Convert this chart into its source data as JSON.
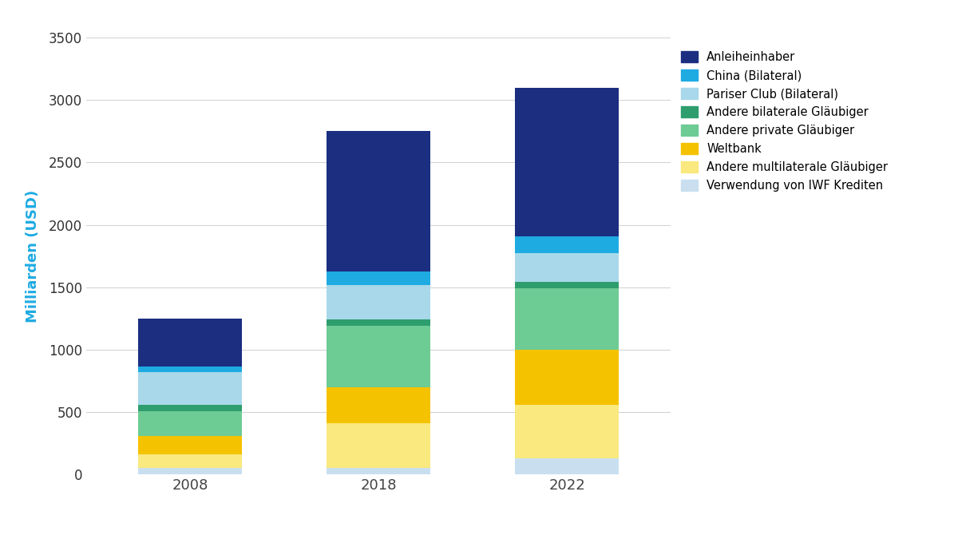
{
  "years": [
    "2008",
    "2018",
    "2022"
  ],
  "categories": [
    "Verwendung von IWF Krediten",
    "Andere multilaterale Gläubiger",
    "Weltbank",
    "Andere private Gläubiger",
    "Andere bilaterale Gläubiger",
    "Pariser Club (Bilateral)",
    "China (Bilateral)",
    "Anleiheinhaber"
  ],
  "colors": [
    "#c9dff0",
    "#f9e97e",
    "#f5c200",
    "#6dcb94",
    "#2e9e6e",
    "#a8d8ea",
    "#1eabe2",
    "#1b2e80"
  ],
  "values": {
    "Verwendung von IWF Krediten": [
      50,
      50,
      130
    ],
    "Andere multilaterale Gläubiger": [
      110,
      360,
      430
    ],
    "Weltbank": [
      145,
      290,
      440
    ],
    "Andere private Gläubiger": [
      200,
      490,
      490
    ],
    "Andere bilaterale Gläubiger": [
      50,
      55,
      50
    ],
    "Pariser Club (Bilateral)": [
      265,
      275,
      235
    ],
    "China (Bilateral)": [
      45,
      105,
      130
    ],
    "Anleiheinhaber": [
      385,
      1125,
      1195
    ]
  },
  "legend_order": [
    "Anleiheinhaber",
    "China (Bilateral)",
    "Pariser Club (Bilateral)",
    "Andere bilaterale Gläubiger",
    "Andere private Gläubiger",
    "Weltbank",
    "Andere multilaterale Gläubiger",
    "Verwendung von IWF Krediten"
  ],
  "ylabel": "Milliarden (USD)",
  "ylim": [
    0,
    3500
  ],
  "yticks": [
    0,
    500,
    1000,
    1500,
    2000,
    2500,
    3000,
    3500
  ],
  "ylabel_color": "#1eabe2",
  "background_color": "#ffffff",
  "bar_width": 0.55
}
